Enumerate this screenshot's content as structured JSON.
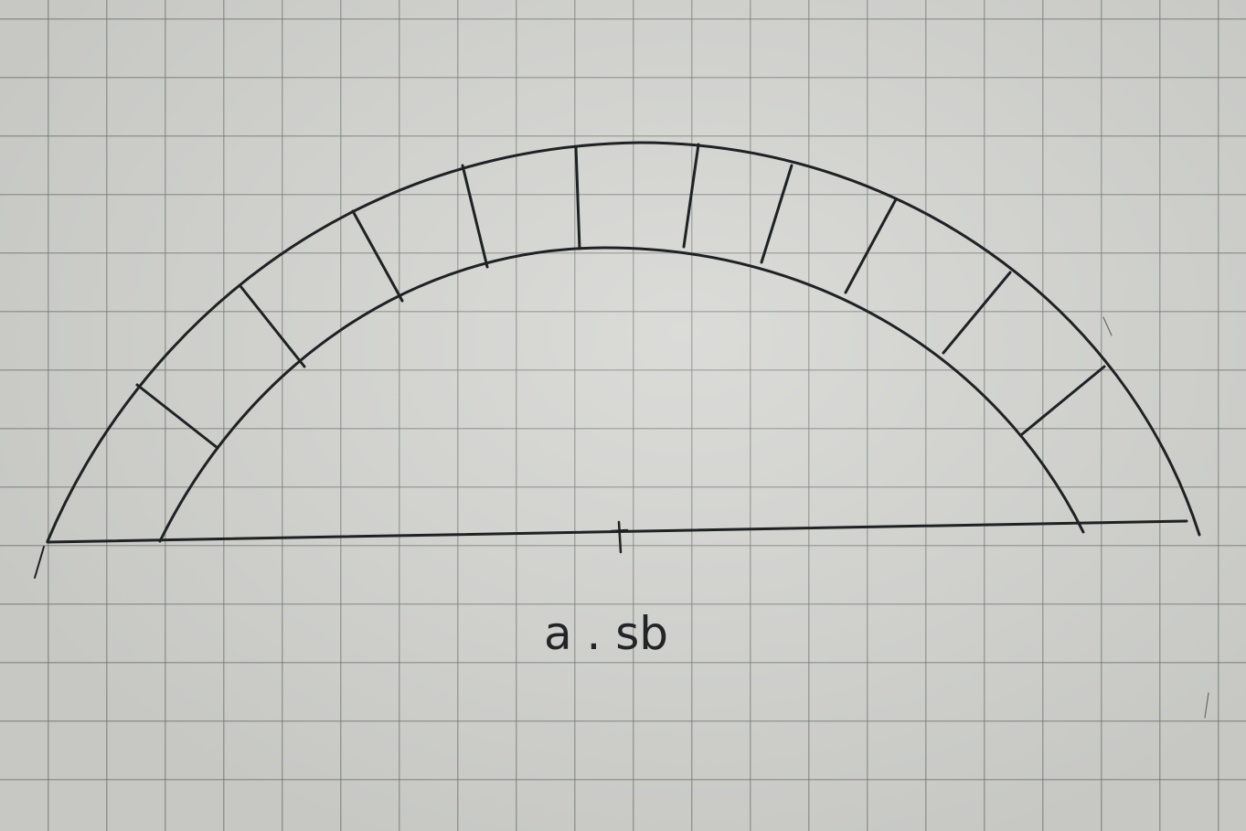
{
  "figure": {
    "caption": "a . sb"
  }
}
